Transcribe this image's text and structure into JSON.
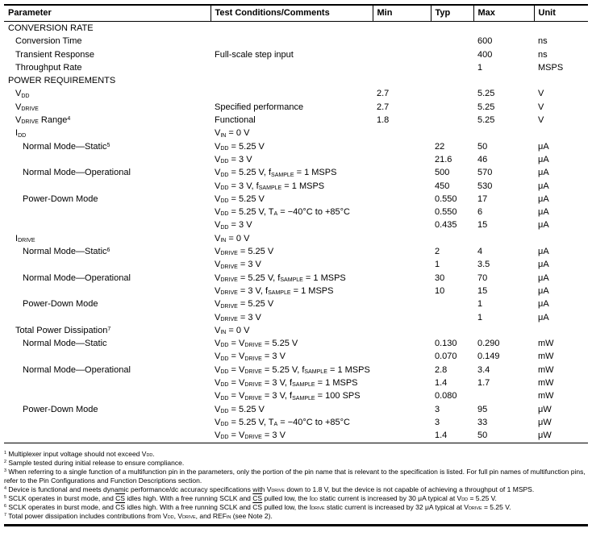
{
  "columns": [
    "Parameter",
    "Test Conditions/Comments",
    "Min",
    "Typ",
    "Max",
    "Unit"
  ],
  "rows": [
    {
      "param": "CONVERSION RATE",
      "indent": 0,
      "section": true,
      "cond": "",
      "min": "",
      "typ": "",
      "max": "",
      "unit": ""
    },
    {
      "param": "Conversion Time",
      "indent": 1,
      "cond": "",
      "min": "",
      "typ": "",
      "max": "600",
      "unit": "ns"
    },
    {
      "param": "Transient Response",
      "indent": 1,
      "cond": "Full-scale step input",
      "min": "",
      "typ": "",
      "max": "400",
      "unit": "ns"
    },
    {
      "param": "Throughput Rate",
      "indent": 1,
      "cond": "",
      "min": "",
      "typ": "",
      "max": "1",
      "unit": "MSPS"
    },
    {
      "param": "POWER REQUIREMENTS",
      "indent": 0,
      "section": true,
      "cond": "",
      "min": "",
      "typ": "",
      "max": "",
      "unit": ""
    },
    {
      "param": "V~DD~",
      "indent": 1,
      "cond": "",
      "min": "2.7",
      "typ": "",
      "max": "5.25",
      "unit": "V"
    },
    {
      "param": "V~DRIVE~",
      "indent": 1,
      "cond": "Specified performance",
      "min": "2.7",
      "typ": "",
      "max": "5.25",
      "unit": "V"
    },
    {
      "param": "V~DRIVE~ Range^4^",
      "indent": 1,
      "cond": "Functional",
      "min": "1.8",
      "typ": "",
      "max": "5.25",
      "unit": "V"
    },
    {
      "param": "I~DD~",
      "indent": 1,
      "cond": "V~IN~ = 0 V",
      "min": "",
      "typ": "",
      "max": "",
      "unit": ""
    },
    {
      "param": "Normal Mode—Static^5^",
      "indent": 2,
      "cond": "V~DD~ = 5.25 V",
      "min": "",
      "typ": "22",
      "max": "50",
      "unit": "μA"
    },
    {
      "param": "",
      "indent": 2,
      "cond": "V~DD~ = 3 V",
      "min": "",
      "typ": "21.6",
      "max": "46",
      "unit": "μA"
    },
    {
      "param": "Normal Mode—Operational",
      "indent": 2,
      "cond": "V~DD~ = 5.25 V, f~SAMPLE~ = 1 MSPS",
      "min": "",
      "typ": "500",
      "max": "570",
      "unit": "μA"
    },
    {
      "param": "",
      "indent": 2,
      "cond": "V~DD~ = 3 V, f~SAMPLE~ = 1 MSPS",
      "min": "",
      "typ": "450",
      "max": "530",
      "unit": "μA"
    },
    {
      "param": "Power-Down Mode",
      "indent": 2,
      "cond": "V~DD~ = 5.25 V",
      "min": "",
      "typ": "0.550",
      "max": "17",
      "unit": "μA"
    },
    {
      "param": "",
      "indent": 2,
      "cond": "V~DD~ = 5.25 V, T~A~ = −40°C to +85°C",
      "min": "",
      "typ": "0.550",
      "max": "6",
      "unit": "μA"
    },
    {
      "param": "",
      "indent": 2,
      "cond": "V~DD~ = 3 V",
      "min": "",
      "typ": "0.435",
      "max": "15",
      "unit": "μA"
    },
    {
      "param": "I~DRIVE~",
      "indent": 1,
      "cond": "V~IN~ = 0 V",
      "min": "",
      "typ": "",
      "max": "",
      "unit": ""
    },
    {
      "param": "Normal Mode—Static^6^",
      "indent": 2,
      "cond": "V~DRIVE~ = 5.25 V",
      "min": "",
      "typ": "2",
      "max": "4",
      "unit": "μA"
    },
    {
      "param": "",
      "indent": 2,
      "cond": "V~DRIVE~ = 3 V",
      "min": "",
      "typ": "1",
      "max": "3.5",
      "unit": "μA"
    },
    {
      "param": "Normal Mode—Operational",
      "indent": 2,
      "cond": "V~DRIVE~ = 5.25 V, f~SAMPLE~ = 1 MSPS",
      "min": "",
      "typ": "30",
      "max": "70",
      "unit": "μA"
    },
    {
      "param": "",
      "indent": 2,
      "cond": "V~DRIVE~ = 3 V, f~SAMPLE~ = 1 MSPS",
      "min": "",
      "typ": "10",
      "max": "15",
      "unit": "μA"
    },
    {
      "param": "Power-Down Mode",
      "indent": 2,
      "cond": "V~DRIVE~ = 5.25 V",
      "min": "",
      "typ": "",
      "max": "1",
      "unit": "μA"
    },
    {
      "param": "",
      "indent": 2,
      "cond": "V~DRIVE~ = 3 V",
      "min": "",
      "typ": "",
      "max": "1",
      "unit": "μA"
    },
    {
      "param": "Total Power Dissipation^7^",
      "indent": 1,
      "cond": "V~IN~ = 0 V",
      "min": "",
      "typ": "",
      "max": "",
      "unit": ""
    },
    {
      "param": "Normal Mode—Static",
      "indent": 2,
      "cond": "V~DD~ = V~DRIVE~ = 5.25 V",
      "min": "",
      "typ": "0.130",
      "max": "0.290",
      "unit": "mW"
    },
    {
      "param": "",
      "indent": 2,
      "cond": "V~DD~ = V~DRIVE~ = 3 V",
      "min": "",
      "typ": "0.070",
      "max": "0.149",
      "unit": "mW"
    },
    {
      "param": "Normal Mode—Operational",
      "indent": 2,
      "cond": "V~DD~ = V~DRIVE~ = 5.25 V, f~SAMPLE~ = 1 MSPS",
      "min": "",
      "typ": "2.8",
      "max": "3.4",
      "unit": "mW"
    },
    {
      "param": "",
      "indent": 2,
      "cond": "V~DD~ = V~DRIVE~ = 3 V, f~SAMPLE~ = 1 MSPS",
      "min": "",
      "typ": "1.4",
      "max": "1.7",
      "unit": "mW"
    },
    {
      "param": "",
      "indent": 2,
      "cond": "V~DD~ = V~DRIVE~ = 3 V, f~SAMPLE~ = 100 SPS",
      "min": "",
      "typ": "0.080",
      "max": "",
      "unit": "mW"
    },
    {
      "param": "Power-Down Mode",
      "indent": 2,
      "cond": "V~DD~ = 5.25 V",
      "min": "",
      "typ": "3",
      "max": "95",
      "unit": "μW"
    },
    {
      "param": "",
      "indent": 2,
      "cond": "V~DD~ = 5.25 V, T~A~ = −40°C to +85°C",
      "min": "",
      "typ": "3",
      "max": "33",
      "unit": "μW"
    },
    {
      "param": "",
      "indent": 2,
      "cond": "V~DD~ = V~DRIVE~ = 3 V",
      "min": "",
      "typ": "1.4",
      "max": "50",
      "unit": "μW"
    }
  ],
  "footnotes": [
    {
      "n": "1",
      "text": "Multiplexer input voltage should not exceed V~DD~."
    },
    {
      "n": "2",
      "text": "Sample tested during initial release to ensure compliance."
    },
    {
      "n": "3",
      "text": "When referring to a single function of a multifunction pin in the parameters, only the portion of the pin name that is relevant to the specification is listed. For full pin names of multifunction pins, refer to the Pin Configurations and Function Descriptions section."
    },
    {
      "n": "4",
      "text": "Device is functional and meets dynamic performance/dc accuracy specifications with V~DRIVE~ down to 1.8 V, but the device is not capable of achieving a throughput of 1 MSPS."
    },
    {
      "n": "5",
      "text": "SCLK operates in burst mode, and *CS* idles high. With a free running SCLK and *CS* pulled low, the I~DD~ static current is increased by 30 μA typical at V~DD~ = 5.25 V."
    },
    {
      "n": "6",
      "text": "SCLK operates in burst mode, and *CS* idles high. With a free running SCLK and *CS* pulled low, the I~DRIVE~ static current is increased by 32 μA typical at V~DRIVE~ = 5.25 V."
    },
    {
      "n": "7",
      "text": "Total power dissipation includes contributions from V~DD~, V~DRIVE~, and REF~IN~ (see Note 2)."
    }
  ]
}
